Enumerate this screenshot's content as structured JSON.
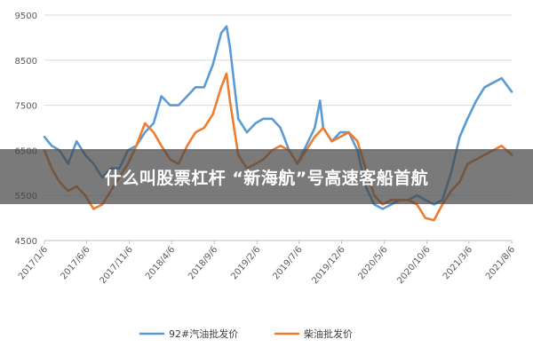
{
  "overlay": {
    "title": "什么叫股票杠杆 “新海航”号高速客船首航"
  },
  "chart_data": {
    "type": "line",
    "title": "",
    "xlabel": "",
    "ylabel": "",
    "ylim": [
      4500,
      9500
    ],
    "yticks": [
      4500,
      5500,
      6500,
      7500,
      8500,
      9500
    ],
    "xlim": [
      "2017-01-06",
      "2021-08-06"
    ],
    "xticks": [
      "2017/1/6",
      "2017/6/6",
      "2017/11/6",
      "2018/4/6",
      "2018/9/6",
      "2019/2/6",
      "2019/7/6",
      "2019/12/6",
      "2020/5/6",
      "2020/10/6",
      "2021/3/6",
      "2021/8/6"
    ],
    "grid": true,
    "legend": "bottom",
    "series": [
      {
        "name": "92#汽油批发价",
        "color": "#5b9bd5",
        "x": [
          "2017-01-06",
          "2017-02-01",
          "2017-03-01",
          "2017-04-01",
          "2017-05-01",
          "2017-06-01",
          "2017-07-01",
          "2017-08-01",
          "2017-09-01",
          "2017-10-01",
          "2017-11-01",
          "2017-12-01",
          "2018-01-01",
          "2018-02-01",
          "2018-03-01",
          "2018-04-01",
          "2018-05-01",
          "2018-06-01",
          "2018-07-01",
          "2018-08-01",
          "2018-09-01",
          "2018-10-01",
          "2018-10-20",
          "2018-11-01",
          "2018-12-01",
          "2019-01-01",
          "2019-02-01",
          "2019-03-01",
          "2019-04-01",
          "2019-05-01",
          "2019-06-01",
          "2019-07-01",
          "2019-08-01",
          "2019-09-01",
          "2019-09-20",
          "2019-10-01",
          "2019-11-01",
          "2019-12-01",
          "2020-01-01",
          "2020-02-01",
          "2020-03-01",
          "2020-04-01",
          "2020-05-01",
          "2020-06-01",
          "2020-07-01",
          "2020-08-01",
          "2020-09-01",
          "2020-10-01",
          "2020-11-01",
          "2020-12-01",
          "2021-01-01",
          "2021-02-01",
          "2021-03-01",
          "2021-04-01",
          "2021-05-01",
          "2021-06-01",
          "2021-07-01",
          "2021-08-06"
        ],
        "values": [
          6800,
          6600,
          6500,
          6200,
          6700,
          6400,
          6200,
          5900,
          6100,
          6100,
          6500,
          6600,
          6900,
          7100,
          7700,
          7500,
          7500,
          7700,
          7900,
          7900,
          8400,
          9100,
          9250,
          8800,
          7200,
          6900,
          7100,
          7200,
          7200,
          7000,
          6500,
          6200,
          6600,
          7000,
          7600,
          7000,
          6700,
          6900,
          6900,
          6500,
          5700,
          5300,
          5200,
          5300,
          5400,
          5400,
          5500,
          5400,
          5300,
          5400,
          6000,
          6800,
          7200,
          7600,
          7900,
          8000,
          8100,
          7800
        ]
      },
      {
        "name": "柴油批发价",
        "color": "#ed7d31",
        "x": [
          "2017-01-06",
          "2017-02-01",
          "2017-03-01",
          "2017-04-01",
          "2017-05-01",
          "2017-06-01",
          "2017-07-01",
          "2017-08-01",
          "2017-09-01",
          "2017-10-01",
          "2017-11-01",
          "2017-12-01",
          "2018-01-01",
          "2018-02-01",
          "2018-03-01",
          "2018-04-01",
          "2018-05-01",
          "2018-06-01",
          "2018-07-01",
          "2018-08-01",
          "2018-09-01",
          "2018-10-01",
          "2018-10-20",
          "2018-11-01",
          "2018-12-01",
          "2019-01-01",
          "2019-02-01",
          "2019-03-01",
          "2019-04-01",
          "2019-05-01",
          "2019-06-01",
          "2019-07-01",
          "2019-08-01",
          "2019-09-01",
          "2019-10-01",
          "2019-11-01",
          "2019-12-01",
          "2020-01-01",
          "2020-02-01",
          "2020-03-01",
          "2020-04-01",
          "2020-05-01",
          "2020-06-01",
          "2020-07-01",
          "2020-08-01",
          "2020-09-01",
          "2020-10-01",
          "2020-11-01",
          "2020-12-01",
          "2021-01-01",
          "2021-02-01",
          "2021-03-01",
          "2021-04-01",
          "2021-05-01",
          "2021-06-01",
          "2021-07-01",
          "2021-08-06"
        ],
        "values": [
          6500,
          6100,
          5800,
          5600,
          5700,
          5500,
          5200,
          5300,
          5600,
          5900,
          6200,
          6600,
          7100,
          6900,
          6600,
          6300,
          6200,
          6600,
          6900,
          7000,
          7300,
          7900,
          8200,
          7600,
          6400,
          6100,
          6200,
          6300,
          6500,
          6600,
          6500,
          6200,
          6500,
          6800,
          7000,
          6700,
          6800,
          6900,
          6700,
          6100,
          5500,
          5300,
          5400,
          5400,
          5400,
          5300,
          5000,
          4950,
          5300,
          5600,
          5800,
          6200,
          6300,
          6400,
          6500,
          6600,
          6400
        ]
      }
    ]
  }
}
